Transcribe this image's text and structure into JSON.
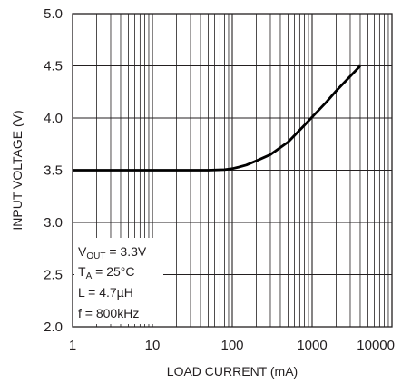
{
  "chart_data": {
    "type": "line",
    "title": "",
    "xlabel": "LOAD CURRENT (mA)",
    "ylabel": "INPUT VOLTAGE (V)",
    "xscale": "log",
    "xlim": [
      1,
      10000
    ],
    "ylim": [
      2.0,
      5.0
    ],
    "grid": true,
    "x_tick_labels": [
      "1",
      "10",
      "100",
      "1000",
      "10000"
    ],
    "y_tick_labels": [
      "2.0",
      "2.5",
      "3.0",
      "3.5",
      "4.0",
      "4.5",
      "5.0"
    ],
    "annotation": {
      "vout_main": "V",
      "vout_sub": "OUT",
      "vout_value": " = 3.3V",
      "ta_main": "T",
      "ta_sub": "A",
      "ta_value": " = 25°C",
      "inductor": "L = 4.7µH",
      "frequency": "f = 800kHz"
    },
    "series": [
      {
        "color": "#000000",
        "x": [
          1,
          10,
          50,
          80,
          100,
          120,
          150,
          200,
          300,
          500,
          800,
          1000,
          1500,
          2000,
          3000,
          4000
        ],
        "y": [
          3.5,
          3.5,
          3.5,
          3.505,
          3.515,
          3.53,
          3.55,
          3.59,
          3.65,
          3.77,
          3.93,
          4.01,
          4.15,
          4.26,
          4.4,
          4.5
        ]
      }
    ]
  }
}
